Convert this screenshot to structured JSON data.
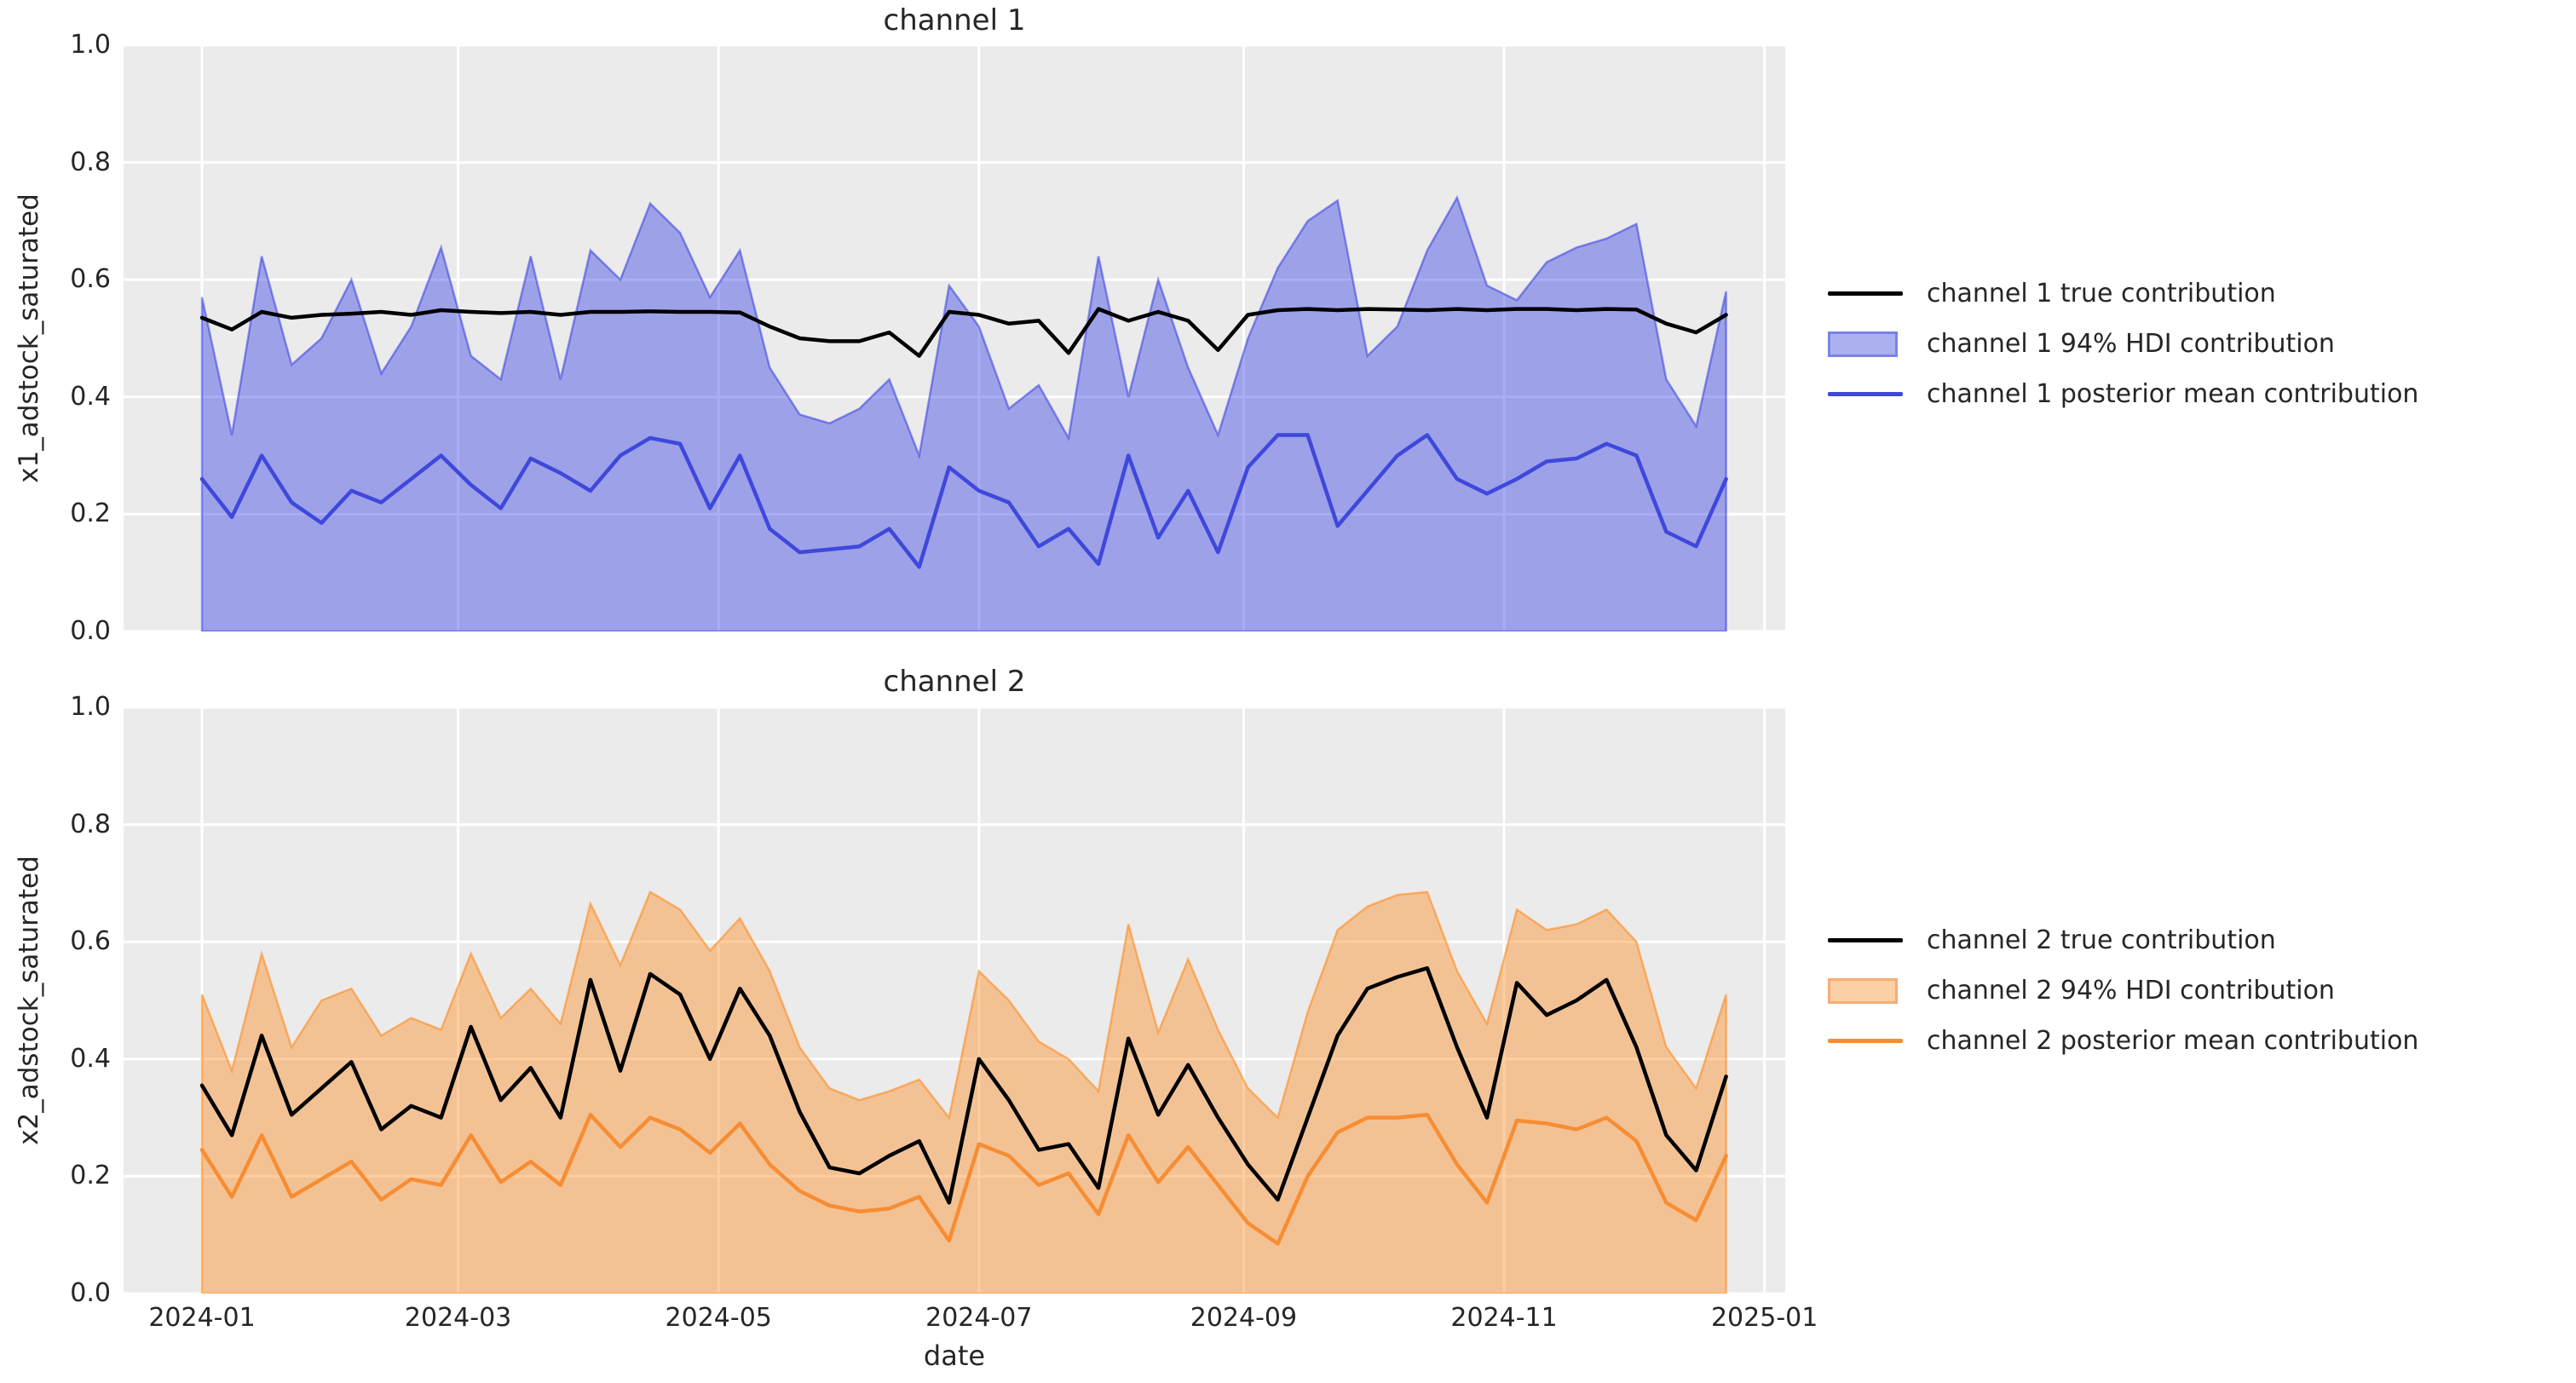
{
  "figure": {
    "background": "#ffffff",
    "plot_background": "#ebebeb",
    "gridline_color": "#ffffff",
    "text_color": "#262626",
    "xlabel": "date",
    "y_tick_labels": [
      "0.0",
      "0.2",
      "0.4",
      "0.6",
      "0.8",
      "1.0"
    ],
    "y_tick_values": [
      0,
      0.2,
      0.4,
      0.6,
      0.8,
      1.0
    ],
    "x_tick_labels": [
      "2024-01",
      "2024-03",
      "2024-05",
      "2024-07",
      "2024-09",
      "2024-11",
      "2025-01"
    ],
    "x_tick_days": [
      0,
      60,
      121,
      182,
      244,
      305,
      366
    ]
  },
  "chart_data": [
    {
      "type": "line",
      "title": "channel 1",
      "ylabel": "x1_adstock_saturated",
      "xlabel": "date",
      "ylim": [
        0,
        1
      ],
      "grid": true,
      "legend_position": "right-outside",
      "x": {
        "start_date": "2024-01-01",
        "step_days": 7,
        "n_points": 52
      },
      "colors": {
        "true_line": "#000000",
        "mean_line": "#3f48dc",
        "band_fill": "rgba(40,50,225,0.40)",
        "band_edge": "rgba(40,50,225,0.50)",
        "legend_swatch_fill": "#acb0ee",
        "legend_swatch_edge": "#7a81e8"
      },
      "legend": [
        "channel 1 true contribution",
        "channel 1 94% HDI contribution",
        "channel 1 posterior mean contribution"
      ],
      "series": [
        {
          "name": "channel 1 true contribution",
          "values": [
            0.535,
            0.515,
            0.545,
            0.535,
            0.54,
            0.542,
            0.545,
            0.54,
            0.548,
            0.545,
            0.543,
            0.545,
            0.54,
            0.545,
            0.545,
            0.546,
            0.545,
            0.545,
            0.544,
            0.52,
            0.5,
            0.495,
            0.495,
            0.51,
            0.47,
            0.545,
            0.54,
            0.525,
            0.53,
            0.475,
            0.55,
            0.53,
            0.545,
            0.53,
            0.48,
            0.54,
            0.548,
            0.55,
            0.548,
            0.55,
            0.549,
            0.548,
            0.55,
            0.548,
            0.55,
            0.55,
            0.548,
            0.55,
            0.549,
            0.525,
            0.51,
            0.54
          ]
        },
        {
          "name": "channel 1 94% HDI upper",
          "values": [
            0.57,
            0.335,
            0.64,
            0.455,
            0.5,
            0.6,
            0.44,
            0.52,
            0.655,
            0.47,
            0.43,
            0.64,
            0.43,
            0.65,
            0.6,
            0.73,
            0.68,
            0.57,
            0.65,
            0.45,
            0.37,
            0.355,
            0.38,
            0.43,
            0.3,
            0.59,
            0.52,
            0.38,
            0.42,
            0.33,
            0.64,
            0.4,
            0.6,
            0.45,
            0.335,
            0.5,
            0.62,
            0.7,
            0.735,
            0.47,
            0.52,
            0.65,
            0.74,
            0.59,
            0.565,
            0.63,
            0.655,
            0.67,
            0.695,
            0.43,
            0.35,
            0.58
          ]
        },
        {
          "name": "channel 1 94% HDI lower",
          "values": [
            0,
            0,
            0,
            0,
            0,
            0,
            0,
            0,
            0,
            0,
            0,
            0,
            0,
            0,
            0,
            0,
            0,
            0,
            0,
            0,
            0,
            0,
            0,
            0,
            0,
            0,
            0,
            0,
            0,
            0,
            0,
            0,
            0,
            0,
            0,
            0,
            0,
            0,
            0,
            0,
            0,
            0,
            0,
            0,
            0,
            0,
            0,
            0,
            0,
            0,
            0,
            0
          ]
        },
        {
          "name": "channel 1 posterior mean contribution",
          "values": [
            0.26,
            0.195,
            0.3,
            0.22,
            0.185,
            0.24,
            0.22,
            0.26,
            0.3,
            0.25,
            0.21,
            0.295,
            0.27,
            0.24,
            0.3,
            0.33,
            0.32,
            0.21,
            0.3,
            0.175,
            0.135,
            0.14,
            0.145,
            0.175,
            0.11,
            0.28,
            0.24,
            0.22,
            0.145,
            0.175,
            0.115,
            0.3,
            0.16,
            0.24,
            0.135,
            0.28,
            0.335,
            0.335,
            0.18,
            0.24,
            0.3,
            0.335,
            0.26,
            0.235,
            0.26,
            0.29,
            0.295,
            0.32,
            0.3,
            0.17,
            0.145,
            0.26
          ]
        }
      ]
    },
    {
      "type": "line",
      "title": "channel 2",
      "ylabel": "x2_adstock_saturated",
      "xlabel": "date",
      "ylim": [
        0,
        1
      ],
      "grid": true,
      "legend_position": "right-outside",
      "x": {
        "start_date": "2024-01-01",
        "step_days": 7,
        "n_points": 52
      },
      "colors": {
        "true_line": "#000000",
        "mean_line": "#f78d33",
        "band_fill": "rgba(255,133,18,0.40)",
        "band_edge": "rgba(255,133,18,0.55)",
        "legend_swatch_fill": "#fbd0a5",
        "legend_swatch_edge": "#f5ad74"
      },
      "legend": [
        "channel 2 true contribution",
        "channel 2 94% HDI contribution",
        "channel 2 posterior mean contribution"
      ],
      "series": [
        {
          "name": "channel 2 true contribution",
          "values": [
            0.355,
            0.27,
            0.44,
            0.305,
            0.35,
            0.395,
            0.28,
            0.32,
            0.3,
            0.455,
            0.33,
            0.385,
            0.3,
            0.535,
            0.38,
            0.545,
            0.51,
            0.4,
            0.52,
            0.44,
            0.31,
            0.215,
            0.205,
            0.235,
            0.26,
            0.155,
            0.4,
            0.33,
            0.245,
            0.255,
            0.18,
            0.435,
            0.305,
            0.39,
            0.3,
            0.22,
            0.16,
            0.3,
            0.44,
            0.52,
            0.54,
            0.555,
            0.42,
            0.3,
            0.53,
            0.475,
            0.5,
            0.535,
            0.42,
            0.27,
            0.21,
            0.37
          ]
        },
        {
          "name": "channel 2 94% HDI upper",
          "values": [
            0.51,
            0.38,
            0.58,
            0.42,
            0.5,
            0.52,
            0.44,
            0.47,
            0.45,
            0.58,
            0.47,
            0.52,
            0.46,
            0.665,
            0.56,
            0.685,
            0.655,
            0.585,
            0.64,
            0.55,
            0.42,
            0.35,
            0.33,
            0.345,
            0.365,
            0.3,
            0.55,
            0.5,
            0.43,
            0.4,
            0.345,
            0.63,
            0.445,
            0.57,
            0.45,
            0.35,
            0.3,
            0.48,
            0.62,
            0.66,
            0.68,
            0.685,
            0.55,
            0.46,
            0.655,
            0.62,
            0.63,
            0.655,
            0.6,
            0.42,
            0.35,
            0.51
          ]
        },
        {
          "name": "channel 2 94% HDI lower",
          "values": [
            0,
            0,
            0,
            0,
            0,
            0,
            0,
            0,
            0,
            0,
            0,
            0,
            0,
            0,
            0,
            0,
            0,
            0,
            0,
            0,
            0,
            0,
            0,
            0,
            0,
            0,
            0,
            0,
            0,
            0,
            0,
            0,
            0,
            0,
            0,
            0,
            0,
            0,
            0,
            0,
            0,
            0,
            0,
            0,
            0,
            0,
            0,
            0,
            0,
            0,
            0,
            0
          ]
        },
        {
          "name": "channel 2 posterior mean contribution",
          "values": [
            0.245,
            0.165,
            0.27,
            0.165,
            0.195,
            0.225,
            0.16,
            0.195,
            0.185,
            0.27,
            0.19,
            0.225,
            0.185,
            0.305,
            0.25,
            0.3,
            0.28,
            0.24,
            0.29,
            0.22,
            0.175,
            0.15,
            0.14,
            0.145,
            0.165,
            0.09,
            0.255,
            0.235,
            0.185,
            0.205,
            0.135,
            0.27,
            0.19,
            0.25,
            0.185,
            0.12,
            0.085,
            0.2,
            0.275,
            0.3,
            0.3,
            0.305,
            0.22,
            0.155,
            0.295,
            0.29,
            0.28,
            0.3,
            0.26,
            0.155,
            0.125,
            0.235
          ]
        }
      ]
    }
  ]
}
